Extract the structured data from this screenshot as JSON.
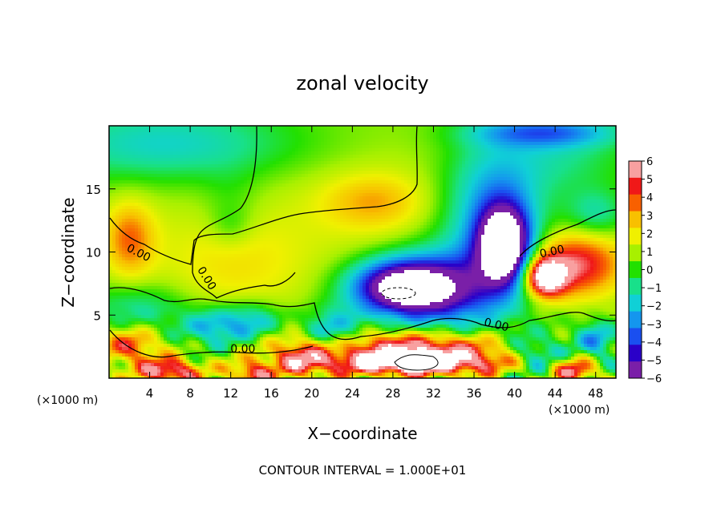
{
  "chart_data": {
    "type": "heatmap",
    "title": "zonal velocity",
    "xlabel": "X−coordinate",
    "ylabel": "Z−coordinate",
    "x_unit_left": "(×1000 m)",
    "x_unit_right": "(×1000 m)",
    "footer": "CONTOUR INTERVAL = 1.000E+01",
    "xlim": [
      0,
      50
    ],
    "ylim": [
      0,
      20
    ],
    "x_ticks": [
      4,
      8,
      12,
      16,
      20,
      24,
      28,
      32,
      36,
      40,
      44,
      48
    ],
    "y_ticks": [
      5,
      10,
      15
    ],
    "colorbar": {
      "levels": [
        -6,
        -5,
        -4,
        -3,
        -2,
        -1,
        0,
        1,
        2,
        3,
        4,
        5,
        6
      ],
      "labels": [
        "6",
        "5",
        "4",
        "3",
        "2",
        "1",
        "0",
        "−1",
        "−2",
        "−3",
        "−4",
        "−5",
        "−6"
      ],
      "colors": [
        "#7a1fa8",
        "#2a00c8",
        "#1a4ff0",
        "#1496ee",
        "#10d0d6",
        "#18e08a",
        "#22e000",
        "#a8f000",
        "#f0f000",
        "#f8c000",
        "#f86000",
        "#f01818",
        "#f8a0a0"
      ]
    },
    "contour_labels": [
      {
        "text": "0.00",
        "x": 2.9,
        "z": 9.9,
        "angle": 27
      },
      {
        "text": "0.00",
        "x": 9.6,
        "z": 7.9,
        "angle": 58
      },
      {
        "text": "0.00",
        "x": 13.2,
        "z": 2.3,
        "angle": 0
      },
      {
        "text": "0.00",
        "x": 38.2,
        "z": 4.2,
        "angle": 14
      },
      {
        "text": "0.00",
        "x": 43.7,
        "z": 10.0,
        "angle": -12
      }
    ],
    "field_blobs": [
      {
        "x": 25,
        "z": 12,
        "rx": 35,
        "rz": 11,
        "v": 1.2
      },
      {
        "x": 26,
        "z": 14,
        "rx": 5,
        "rz": 2.2,
        "v": 2.0
      },
      {
        "x": 12,
        "z": 9,
        "rx": 7,
        "rz": 4,
        "v": 1.2
      },
      {
        "x": 6,
        "z": 18.5,
        "rx": 13,
        "rz": 3,
        "v": -2.6
      },
      {
        "x": 12,
        "z": 13.5,
        "rx": 3,
        "rz": 3,
        "v": -0.9
      },
      {
        "x": 12,
        "z": 12,
        "rx": 2,
        "rz": 1.5,
        "v": -0.8
      },
      {
        "x": 2,
        "z": 11,
        "rx": 2.5,
        "rz": 3,
        "v": 3.0
      },
      {
        "x": 3,
        "z": 5.5,
        "rx": 5,
        "rz": 2,
        "v": -2.0
      },
      {
        "x": 38,
        "z": 13,
        "rx": 5,
        "rz": 6,
        "v": -4.2
      },
      {
        "x": 34,
        "z": 7,
        "rx": 6,
        "rz": 3.5,
        "v": -3.8
      },
      {
        "x": 45,
        "z": 17.5,
        "rx": 6,
        "rz": 3,
        "v": -1.6
      },
      {
        "x": 43,
        "z": 19.5,
        "rx": 7,
        "rz": 1.2,
        "v": -3.5
      },
      {
        "x": 48,
        "z": 13,
        "rx": 3,
        "rz": 2,
        "v": -2.2
      },
      {
        "x": 29,
        "z": 7.2,
        "rx": 5.2,
        "rz": 2.2,
        "v": -9.0
      },
      {
        "x": 39,
        "z": 10.5,
        "rx": 2.5,
        "rz": 3,
        "v": -9.0
      },
      {
        "x": 46,
        "z": 9,
        "rx": 4.5,
        "rz": 2.5,
        "v": 4.8
      },
      {
        "x": 43,
        "z": 8,
        "rx": 2,
        "rz": 1.5,
        "v": 7.5
      },
      {
        "x": 22,
        "z": 3.5,
        "rx": 3,
        "rz": 2,
        "v": -3.5
      },
      {
        "x": 10,
        "z": 4,
        "rx": 3,
        "rz": 1.5,
        "v": -3.0
      },
      {
        "x": 14,
        "z": 4.5,
        "rx": 3,
        "rz": 1.5,
        "v": -3.0
      },
      {
        "x": 42,
        "z": 2,
        "rx": 3,
        "rz": 1.5,
        "v": -3.5
      },
      {
        "x": 48,
        "z": 3,
        "rx": 2,
        "rz": 1.5,
        "v": -3.5
      },
      {
        "x": 30,
        "z": 2.5,
        "rx": 10,
        "rz": 1.2,
        "v": 5.0
      },
      {
        "x": 30,
        "z": 1.2,
        "rx": 9,
        "rz": 1.0,
        "v": 8.0
      },
      {
        "x": 2,
        "z": 2.5,
        "rx": 3,
        "rz": 1.5,
        "v": 4.0
      },
      {
        "x": 6,
        "z": 0.5,
        "rx": 3,
        "rz": 1,
        "v": 6.0
      },
      {
        "x": 14,
        "z": 0.3,
        "rx": 2,
        "rz": 1,
        "v": 5.0
      },
      {
        "x": 19,
        "z": 1.5,
        "rx": 3,
        "rz": 1.5,
        "v": 4.0
      },
      {
        "x": 46,
        "z": 0.5,
        "rx": 2,
        "rz": 1,
        "v": 5.0
      }
    ]
  }
}
